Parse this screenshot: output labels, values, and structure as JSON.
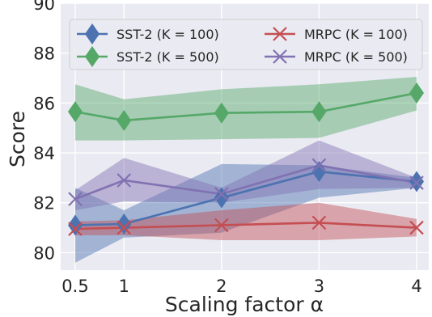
{
  "chart_data": {
    "type": "line",
    "xlabel": "Scaling factor α",
    "ylabel": "Score",
    "x": [
      0.5,
      1,
      2,
      3,
      4
    ],
    "xticks": [
      "0.5",
      "1",
      "2",
      "3",
      "4"
    ],
    "yticks": [
      80,
      82,
      84,
      86,
      88,
      90
    ],
    "ylim": [
      79.3,
      90
    ],
    "grid": true,
    "legend_position": "top",
    "series": [
      {
        "name": "SST-2 (K = 100)",
        "color": "#4c72b0",
        "marker": "diamond",
        "values": [
          81.1,
          81.15,
          82.2,
          83.25,
          82.85
        ],
        "lower": [
          79.6,
          80.6,
          80.8,
          82.2,
          82.6
        ],
        "upper": [
          82.6,
          81.7,
          83.55,
          83.5,
          83.0
        ]
      },
      {
        "name": "SST-2 (K = 500)",
        "color": "#55a868",
        "marker": "diamond",
        "values": [
          85.65,
          85.3,
          85.6,
          85.65,
          86.4
        ],
        "lower": [
          84.5,
          84.5,
          84.55,
          84.6,
          85.7
        ],
        "upper": [
          86.75,
          86.15,
          86.55,
          86.75,
          87.05
        ]
      },
      {
        "name": "MRPC (K = 100)",
        "color": "#c44e52",
        "marker": "x",
        "values": [
          80.95,
          81.0,
          81.1,
          81.2,
          81.0
        ],
        "lower": [
          80.7,
          80.7,
          80.5,
          80.5,
          80.65
        ],
        "upper": [
          81.25,
          81.3,
          81.7,
          82.0,
          81.35
        ]
      },
      {
        "name": "MRPC (K = 500)",
        "color": "#8172b2",
        "marker": "x",
        "values": [
          82.15,
          82.9,
          82.35,
          83.5,
          82.8
        ],
        "lower": [
          81.7,
          82.05,
          82.0,
          82.55,
          82.6
        ],
        "upper": [
          82.5,
          83.8,
          82.6,
          84.5,
          83.0
        ]
      }
    ]
  }
}
